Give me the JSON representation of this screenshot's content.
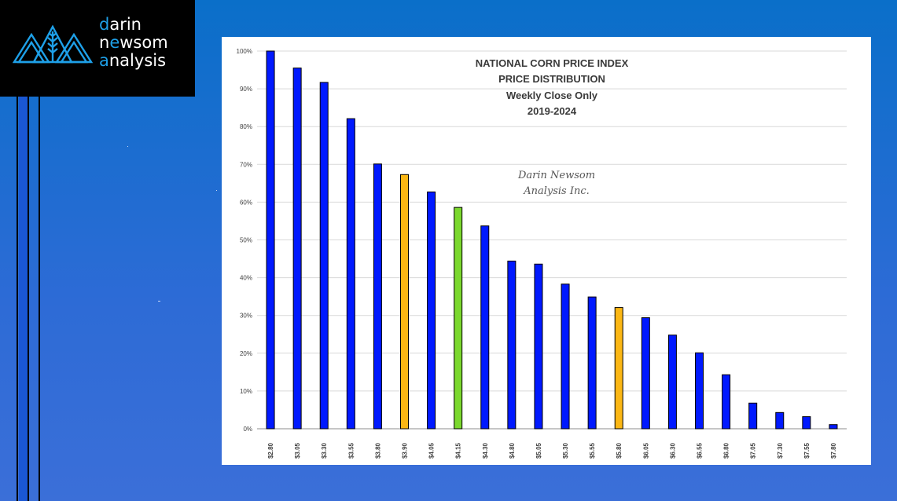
{
  "logo": {
    "line1_accent": "d",
    "line1_rest": "arin",
    "line2_rest_a": "n",
    "line2_accent": "e",
    "line2_rest_b": "wsom",
    "line3_accent": "a",
    "line3_rest": "nalysis",
    "accent_color": "#1ea0e8"
  },
  "chart_data": {
    "type": "bar",
    "title_lines": [
      "NATIONAL CORN PRICE INDEX",
      "PRICE DISTRIBUTION",
      "Weekly Close Only",
      "2019-2024"
    ],
    "watermark_lines": [
      "Darin Newsom",
      "Analysis Inc."
    ],
    "categories": [
      "$2.80",
      "$3.05",
      "$3.30",
      "$3.55",
      "$3.80",
      "$3.90",
      "$4.05",
      "$4.15",
      "$4.30",
      "$4.80",
      "$5.05",
      "$5.30",
      "$5.55",
      "$5.80",
      "$6.05",
      "$6.30",
      "$6.55",
      "$6.80",
      "$7.05",
      "$7.30",
      "$7.55",
      "$7.80"
    ],
    "values": [
      100,
      95.5,
      91.7,
      82.1,
      70.1,
      67.3,
      62.7,
      58.6,
      53.7,
      44.4,
      43.6,
      38.3,
      34.9,
      32.1,
      29.4,
      24.8,
      20.1,
      14.3,
      6.8,
      4.3,
      3.2,
      1.1
    ],
    "highlight": {
      "$3.90": "#fbb714",
      "$4.15": "#7bd82e",
      "$5.80": "#fbb714"
    },
    "default_color": "#0019ff",
    "yticks": [
      "0%",
      "10%",
      "20%",
      "30%",
      "40%",
      "50%",
      "60%",
      "70%",
      "80%",
      "90%",
      "100%"
    ],
    "ylim": [
      0,
      100
    ],
    "xlabel": "",
    "ylabel": "",
    "grid": true,
    "legend": "none"
  }
}
